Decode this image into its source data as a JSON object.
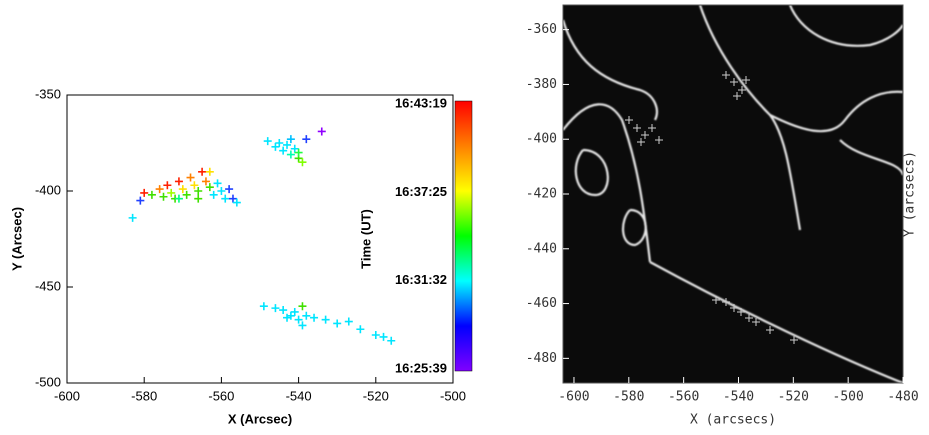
{
  "chart_data": [
    {
      "type": "scatter",
      "xlabel": "X (Arcsec)",
      "ylabel": "Y (Arcsec)",
      "xlim": [
        -600,
        -500
      ],
      "ylim": [
        -500,
        -350
      ],
      "xticks": [
        -600,
        -580,
        -560,
        -540,
        -520,
        -500
      ],
      "yticks": [
        -500,
        -450,
        -400,
        -350
      ],
      "x": [
        -583,
        -581,
        -580,
        -578,
        -576,
        -575,
        -574,
        -573,
        -572,
        -571,
        -570,
        -569,
        -568,
        -567,
        -566,
        -565,
        -564,
        -563,
        -563,
        -562,
        -561,
        -560,
        -559,
        -558,
        -557,
        -556,
        -566,
        -571,
        -548,
        -546,
        -545,
        -544,
        -543,
        -542,
        -541,
        -540,
        -539,
        -538,
        -534,
        -542,
        -540,
        -549,
        -546,
        -544,
        -542,
        -541,
        -540,
        -539,
        -538,
        -536,
        -533,
        -530,
        -527,
        -524,
        -520,
        -518,
        -516,
        -543,
        -539
      ],
      "y": [
        -414,
        -405,
        -401,
        -402,
        -399,
        -403,
        -397,
        -401,
        -404,
        -395,
        -399,
        -402,
        -393,
        -397,
        -400,
        -390,
        -395,
        -398,
        -390,
        -402,
        -396,
        -400,
        -404,
        -399,
        -404,
        -406,
        -404,
        -404,
        -374,
        -377,
        -375,
        -379,
        -376,
        -381,
        -378,
        -383,
        -385,
        -373,
        -369,
        -373,
        -380,
        -460,
        -461,
        -462,
        -465,
        -463,
        -467,
        -460,
        -465,
        -466,
        -467,
        -469,
        -468,
        -472,
        -475,
        -476,
        -478,
        -466,
        -470
      ],
      "colors": [
        "#00e5ff",
        "#2040ff",
        "#ff2000",
        "#40e000",
        "#ff8000",
        "#40e000",
        "#ff2000",
        "#a0ff00",
        "#40e000",
        "#ff2000",
        "#ffe000",
        "#40e000",
        "#ff8000",
        "#ffe000",
        "#40e000",
        "#ff2000",
        "#ff8000",
        "#40e000",
        "#ffe000",
        "#00e5ff",
        "#00e5ff",
        "#00e5ff",
        "#00e5ff",
        "#2040ff",
        "#2040ff",
        "#00e5ff",
        "#40e000",
        "#00ff80",
        "#00e5ff",
        "#00e5ff",
        "#00e5ff",
        "#00e5ff",
        "#00e5ff",
        "#00ffb0",
        "#00e5ff",
        "#40e000",
        "#80ff00",
        "#2040ff",
        "#9000ff",
        "#00c0ff",
        "#20ff40",
        "#00e5ff",
        "#00e5ff",
        "#00e5ff",
        "#00e5ff",
        "#00e5ff",
        "#00e5ff",
        "#40e000",
        "#00e5ff",
        "#00e5ff",
        "#00e5ff",
        "#00e5ff",
        "#00e5ff",
        "#00e5ff",
        "#00e5ff",
        "#00e5ff",
        "#00e5ff",
        "#00e5ff",
        "#00e5ff"
      ],
      "colorbar": {
        "label": "Time (UT)",
        "ticks": [
          "16:25:39",
          "16:31:32",
          "16:37:25",
          "16:43:19"
        ],
        "colors": [
          "#8000ff",
          "#0000ff",
          "#00ffff",
          "#00ff00",
          "#ffff00",
          "#ff8000",
          "#ff0000"
        ]
      }
    },
    {
      "type": "image",
      "xlabel": "X (arcsecs)",
      "ylabel": "Y (arcsecs)",
      "xlim": [
        -604,
        -480
      ],
      "ylim": [
        -489,
        -351
      ],
      "xticks": [
        -600,
        -580,
        -560,
        -540,
        -520,
        -500,
        -480
      ],
      "yticks": [
        -480,
        -460,
        -440,
        -420,
        -400,
        -380,
        -360
      ]
    }
  ]
}
